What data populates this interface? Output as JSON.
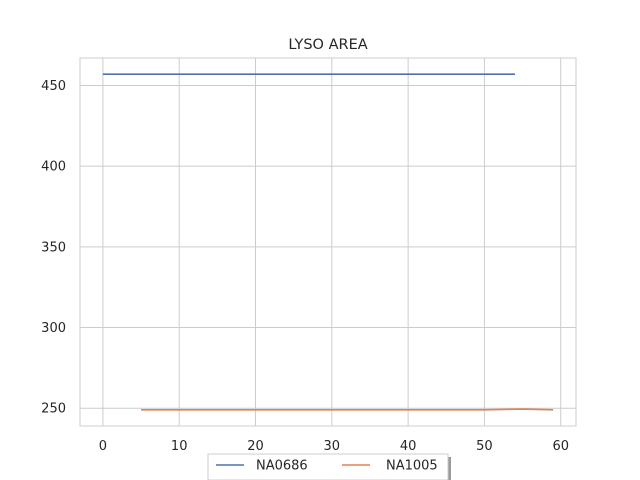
{
  "chart_data": {
    "type": "line",
    "title": "LYSO AREA",
    "xlabel": "",
    "ylabel": "",
    "xlim": [
      -3,
      62
    ],
    "ylim": [
      239,
      467
    ],
    "xticks": [
      0,
      10,
      20,
      30,
      40,
      50,
      60
    ],
    "yticks": [
      250,
      300,
      350,
      400,
      450
    ],
    "grid": true,
    "legend_position": "bottom-center",
    "series": [
      {
        "name": "NA0686",
        "color": "#4c72b0",
        "x": [
          0,
          54
        ],
        "y": [
          457,
          457
        ]
      },
      {
        "name": "NA1005",
        "color": "#dd8452",
        "x": [
          5,
          10,
          20,
          30,
          40,
          50,
          55,
          59
        ],
        "y": [
          249,
          249,
          249,
          249,
          249,
          249,
          249.5,
          249
        ]
      }
    ]
  }
}
